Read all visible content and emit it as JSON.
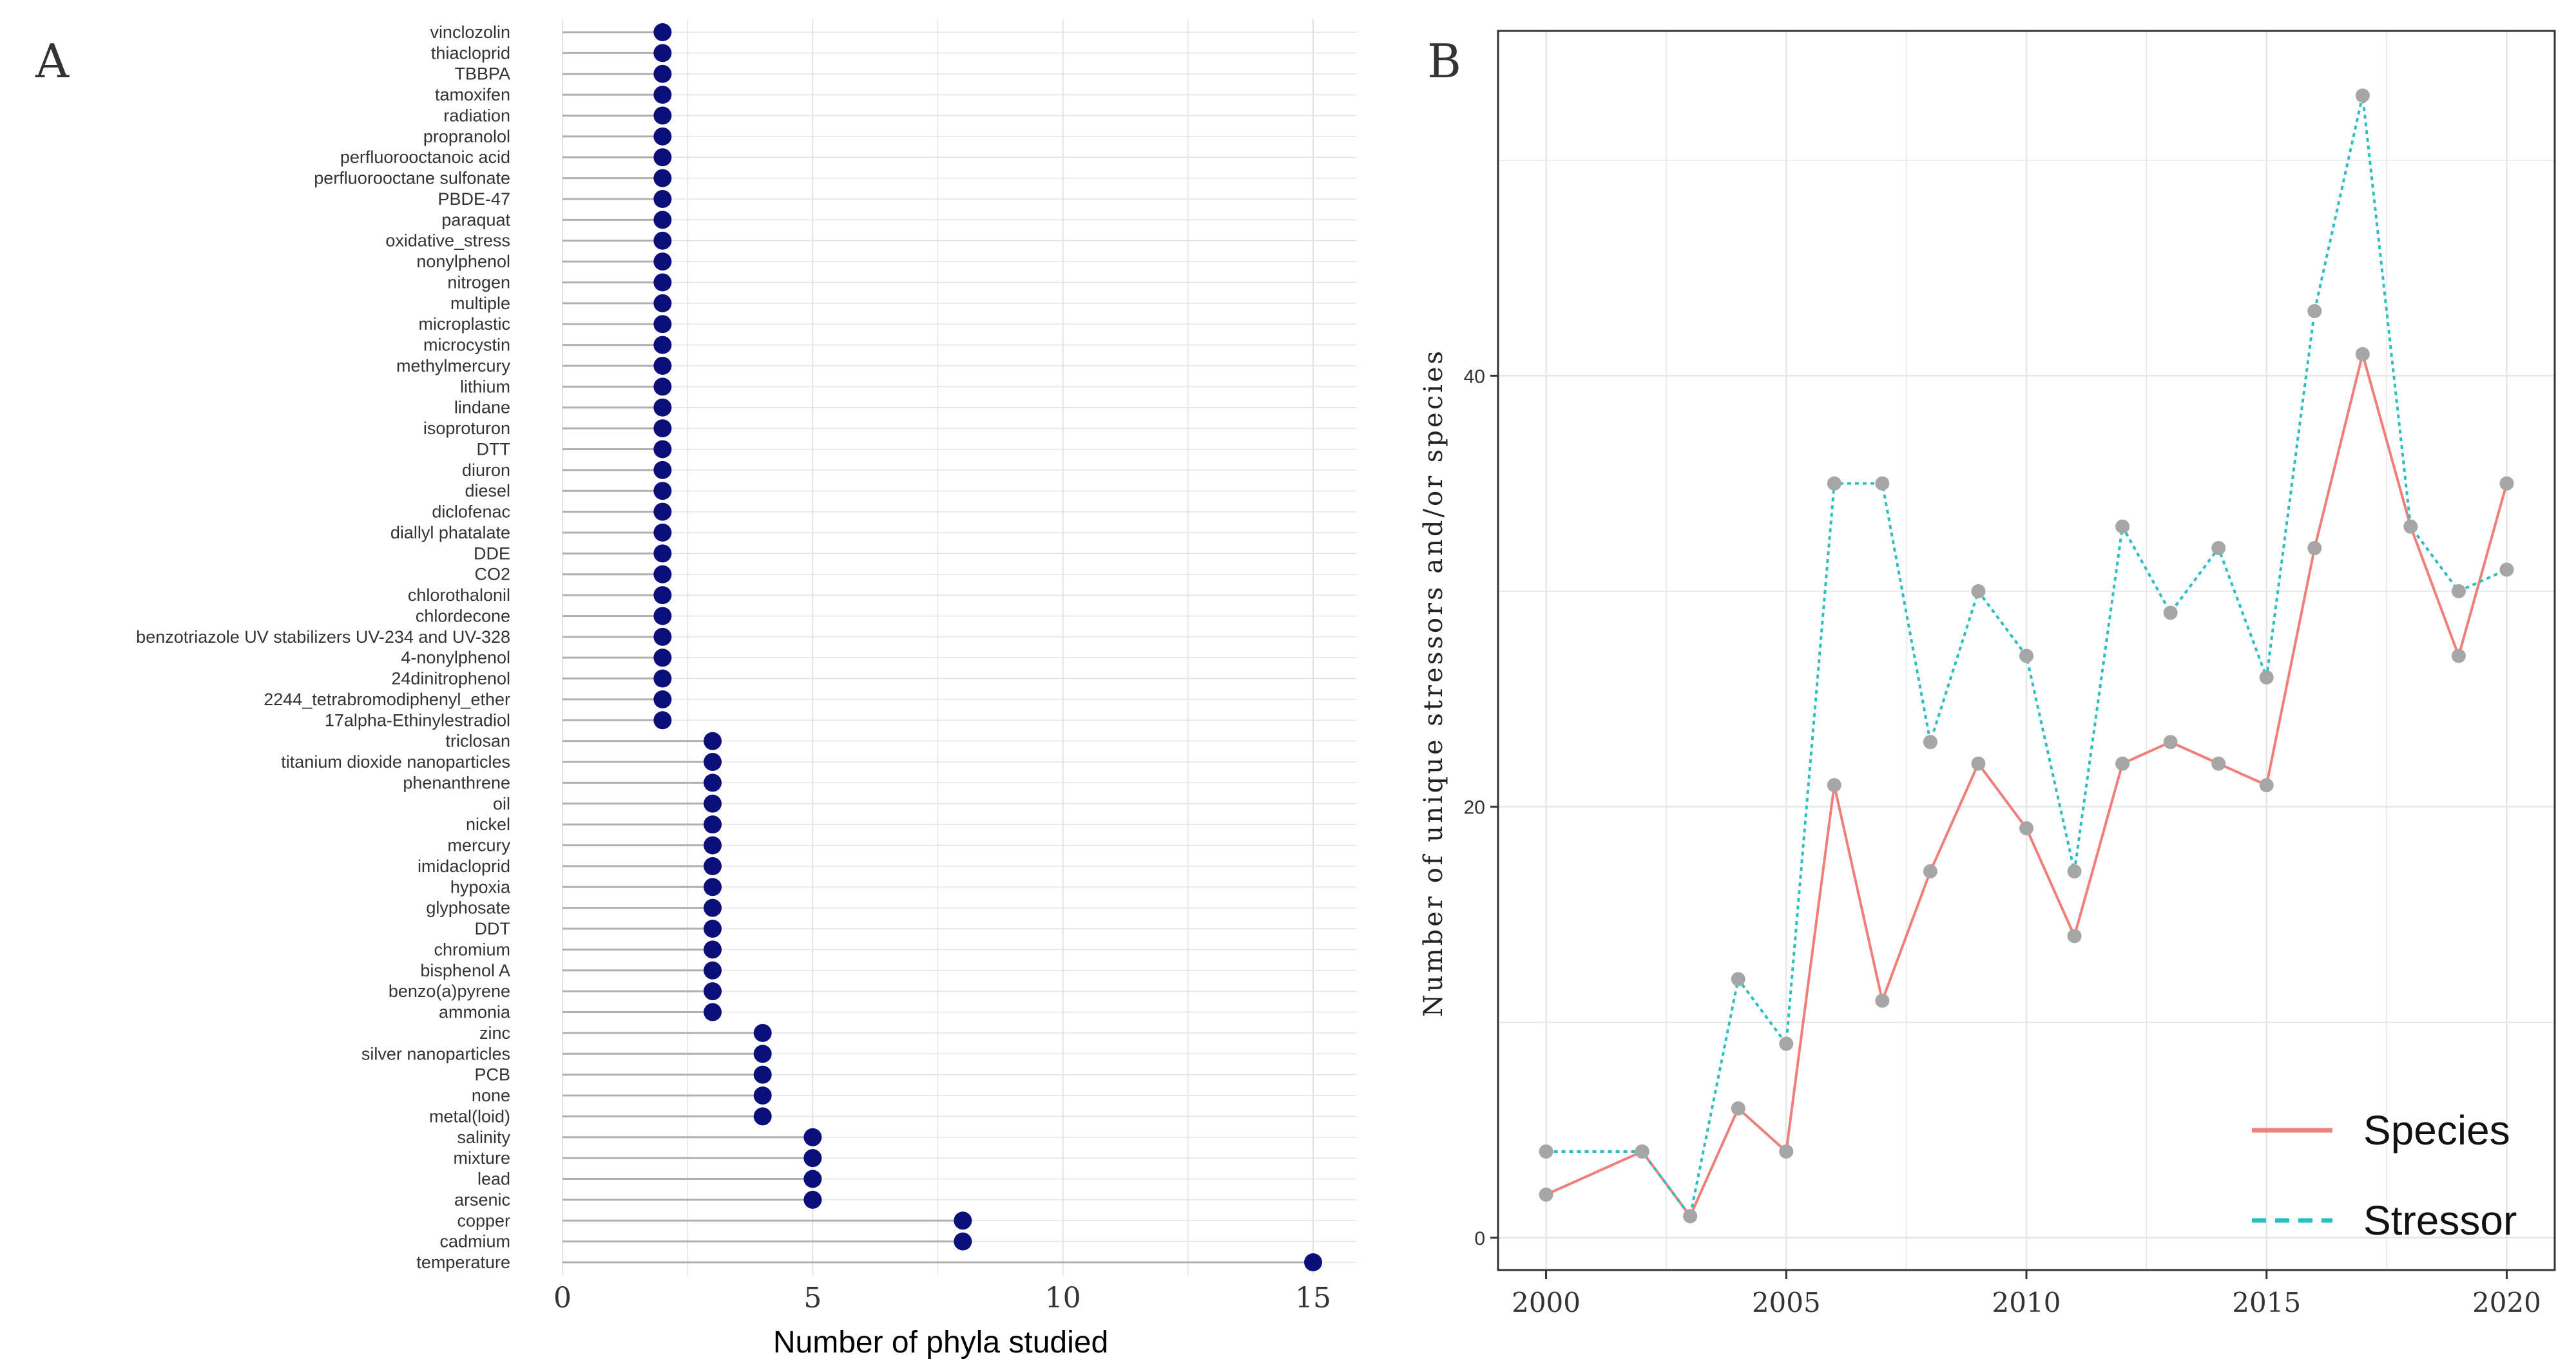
{
  "chart_data": [
    {
      "panel": "A",
      "type": "lollipop",
      "xlabel": "Number of phyla studied",
      "ylabel": "",
      "xlim": [
        0,
        15
      ],
      "xticks": [
        0,
        5,
        10,
        15
      ],
      "point_color": "#0b0f7a",
      "stem_color": "#b0b0b0",
      "grid_color": "#e3e3e3",
      "categories": [
        "vinclozolin",
        "thiacloprid",
        "TBBPA",
        "tamoxifen",
        "radiation",
        "propranolol",
        "perfluorooctanoic acid",
        "perfluorooctane sulfonate",
        "PBDE-47",
        "paraquat",
        "oxidative_stress",
        "nonylphenol",
        "nitrogen",
        "multiple",
        "microplastic",
        "microcystin",
        "methylmercury",
        "lithium",
        "lindane",
        "isoproturon",
        "DTT",
        "diuron",
        "diesel",
        "diclofenac",
        "diallyl phatalate",
        "DDE",
        "CO2",
        "chlorothalonil",
        "chlordecone",
        "benzotriazole UV stabilizers UV-234 and UV-328",
        "4-nonylphenol",
        "24dinitrophenol",
        "2244_tetrabromodiphenyl_ether",
        "17alpha-Ethinylestradiol",
        "triclosan",
        "titanium dioxide nanoparticles",
        "phenanthrene",
        "oil",
        "nickel",
        "mercury",
        "imidacloprid",
        "hypoxia",
        "glyphosate",
        "DDT",
        "chromium",
        "bisphenol A",
        "benzo(a)pyrene",
        "ammonia",
        "zinc",
        "silver nanoparticles",
        "PCB",
        "none",
        "metal(loid)",
        "salinity",
        "mixture",
        "lead",
        "arsenic",
        "copper",
        "cadmium",
        "temperature"
      ],
      "values": [
        2,
        2,
        2,
        2,
        2,
        2,
        2,
        2,
        2,
        2,
        2,
        2,
        2,
        2,
        2,
        2,
        2,
        2,
        2,
        2,
        2,
        2,
        2,
        2,
        2,
        2,
        2,
        2,
        2,
        2,
        2,
        2,
        2,
        2,
        3,
        3,
        3,
        3,
        3,
        3,
        3,
        3,
        3,
        3,
        3,
        3,
        3,
        3,
        4,
        4,
        4,
        4,
        4,
        5,
        5,
        5,
        5,
        8,
        8,
        15
      ]
    },
    {
      "panel": "B",
      "type": "line",
      "xlabel": "",
      "ylabel": "Number of unique stressors and/or species",
      "xlim": [
        1999.0,
        2021.0
      ],
      "ylim": [
        -1.5,
        56
      ],
      "xticks": [
        2000,
        2005,
        2010,
        2015,
        2020
      ],
      "yticks": [
        0,
        20,
        40
      ],
      "point_color": "#a6a6a6",
      "series": [
        {
          "name": "Species",
          "color": "#f07f7a",
          "dash": "solid",
          "x": [
            2000,
            2002,
            2003,
            2004,
            2005,
            2006,
            2007,
            2008,
            2009,
            2010,
            2011,
            2012,
            2013,
            2014,
            2015,
            2016,
            2017,
            2018,
            2019,
            2020
          ],
          "values": [
            2,
            4,
            1,
            6,
            4,
            21,
            11,
            17,
            22,
            19,
            14,
            22,
            23,
            22,
            21,
            32,
            41,
            33,
            27,
            35
          ]
        },
        {
          "name": "Stressor",
          "color": "#2bbfc4",
          "dash": "dotted",
          "x": [
            2000,
            2002,
            2003,
            2004,
            2005,
            2006,
            2007,
            2008,
            2009,
            2010,
            2011,
            2012,
            2013,
            2014,
            2015,
            2016,
            2017,
            2018,
            2019,
            2020
          ],
          "values": [
            4,
            4,
            1,
            12,
            9,
            35,
            35,
            23,
            30,
            27,
            17,
            33,
            29,
            32,
            26,
            43,
            53,
            33,
            30,
            31
          ]
        }
      ],
      "legend": [
        "Species",
        "Stressor"
      ],
      "legend_position": "bottom-right"
    }
  ]
}
